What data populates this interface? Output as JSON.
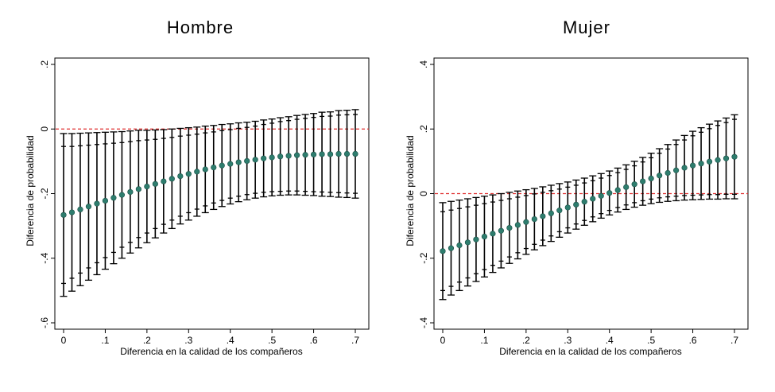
{
  "chart_data": [
    {
      "type": "scatter",
      "title": "Hombre",
      "xlabel": "Diferencia en la calidad de los compañeros",
      "ylabel": "Diferencia de probabilidad",
      "xlim": [
        0,
        0.7
      ],
      "ylim": [
        -0.6,
        0.2
      ],
      "xticks": [
        0,
        0.1,
        0.2,
        0.3,
        0.4,
        0.5,
        0.6,
        0.7
      ],
      "xtick_labels": [
        "0",
        ".1",
        ".2",
        ".3",
        ".4",
        ".5",
        ".6",
        ".7"
      ],
      "yticks": [
        -0.6,
        -0.4,
        -0.2,
        0,
        0.2
      ],
      "ytick_labels": [
        "-.6",
        "-.4",
        "-.2",
        "0",
        ".2"
      ],
      "reference_line": {
        "y": 0,
        "color": "#e03030",
        "style": "dashed"
      },
      "marker_color": "#2e7d6e",
      "grid": false,
      "x": [
        0,
        0.02,
        0.04,
        0.06,
        0.08,
        0.1,
        0.12,
        0.14,
        0.16,
        0.18,
        0.2,
        0.22,
        0.24,
        0.26,
        0.28,
        0.3,
        0.32,
        0.34,
        0.36,
        0.38,
        0.4,
        0.42,
        0.44,
        0.46,
        0.48,
        0.5,
        0.52,
        0.54,
        0.56,
        0.58,
        0.6,
        0.62,
        0.64,
        0.66,
        0.68,
        0.7
      ],
      "y": [
        -0.266,
        -0.258,
        -0.249,
        -0.24,
        -0.231,
        -0.222,
        -0.213,
        -0.204,
        -0.195,
        -0.186,
        -0.178,
        -0.17,
        -0.162,
        -0.154,
        -0.146,
        -0.139,
        -0.132,
        -0.125,
        -0.119,
        -0.113,
        -0.108,
        -0.103,
        -0.099,
        -0.095,
        -0.091,
        -0.088,
        -0.085,
        -0.083,
        -0.081,
        -0.08,
        -0.079,
        -0.078,
        -0.078,
        -0.077,
        -0.077,
        -0.077
      ],
      "ci90_low": [
        -0.478,
        -0.462,
        -0.446,
        -0.43,
        -0.414,
        -0.398,
        -0.382,
        -0.366,
        -0.351,
        -0.336,
        -0.322,
        -0.308,
        -0.295,
        -0.282,
        -0.27,
        -0.259,
        -0.248,
        -0.238,
        -0.229,
        -0.221,
        -0.214,
        -0.208,
        -0.203,
        -0.199,
        -0.196,
        -0.194,
        -0.193,
        -0.192,
        -0.192,
        -0.193,
        -0.194,
        -0.195,
        -0.196,
        -0.197,
        -0.198,
        -0.199
      ],
      "ci90_high": [
        -0.054,
        -0.054,
        -0.052,
        -0.05,
        -0.048,
        -0.046,
        -0.044,
        -0.042,
        -0.039,
        -0.036,
        -0.034,
        -0.032,
        -0.029,
        -0.026,
        -0.022,
        -0.019,
        -0.016,
        -0.012,
        -0.009,
        -0.005,
        -0.002,
        0.002,
        0.005,
        0.009,
        0.014,
        0.018,
        0.023,
        0.026,
        0.03,
        0.033,
        0.036,
        0.039,
        0.04,
        0.043,
        0.044,
        0.045
      ],
      "ci95_low": [
        -0.518,
        -0.502,
        -0.485,
        -0.468,
        -0.451,
        -0.434,
        -0.417,
        -0.4,
        -0.384,
        -0.368,
        -0.352,
        -0.337,
        -0.322,
        -0.308,
        -0.294,
        -0.282,
        -0.27,
        -0.259,
        -0.249,
        -0.24,
        -0.232,
        -0.225,
        -0.219,
        -0.214,
        -0.21,
        -0.207,
        -0.205,
        -0.204,
        -0.204,
        -0.205,
        -0.206,
        -0.208,
        -0.209,
        -0.211,
        -0.212,
        -0.214
      ],
      "ci95_high": [
        -0.014,
        -0.014,
        -0.013,
        -0.012,
        -0.011,
        -0.01,
        -0.009,
        -0.008,
        -0.006,
        -0.004,
        -0.004,
        -0.003,
        -0.002,
        0.0,
        0.002,
        0.004,
        0.006,
        0.009,
        0.011,
        0.014,
        0.016,
        0.019,
        0.021,
        0.024,
        0.028,
        0.031,
        0.035,
        0.038,
        0.042,
        0.045,
        0.048,
        0.052,
        0.053,
        0.057,
        0.058,
        0.06
      ]
    },
    {
      "type": "scatter",
      "title": "Mujer",
      "xlabel": "Diferencia en la calidad de los compañeros",
      "ylabel": "Diferencia de probabilidad",
      "xlim": [
        0,
        0.7
      ],
      "ylim": [
        -0.4,
        0.4
      ],
      "xticks": [
        0,
        0.1,
        0.2,
        0.3,
        0.4,
        0.5,
        0.6,
        0.7
      ],
      "xtick_labels": [
        "0",
        ".1",
        ".2",
        ".3",
        ".4",
        ".5",
        ".6",
        ".7"
      ],
      "yticks": [
        -0.4,
        -0.2,
        0,
        0.2,
        0.4
      ],
      "ytick_labels": [
        "-.4",
        "-.2",
        "0",
        ".2",
        ".4"
      ],
      "reference_line": {
        "y": 0,
        "color": "#e03030",
        "style": "dashed"
      },
      "marker_color": "#2e7d6e",
      "grid": false,
      "x": [
        0,
        0.02,
        0.04,
        0.06,
        0.08,
        0.1,
        0.12,
        0.14,
        0.16,
        0.18,
        0.2,
        0.22,
        0.24,
        0.26,
        0.28,
        0.3,
        0.32,
        0.34,
        0.36,
        0.38,
        0.4,
        0.42,
        0.44,
        0.46,
        0.48,
        0.5,
        0.52,
        0.54,
        0.56,
        0.58,
        0.6,
        0.62,
        0.64,
        0.66,
        0.68,
        0.7
      ],
      "y": [
        -0.178,
        -0.169,
        -0.16,
        -0.151,
        -0.142,
        -0.133,
        -0.124,
        -0.115,
        -0.106,
        -0.097,
        -0.088,
        -0.079,
        -0.07,
        -0.061,
        -0.052,
        -0.043,
        -0.034,
        -0.025,
        -0.016,
        -0.007,
        0.002,
        0.011,
        0.02,
        0.029,
        0.038,
        0.047,
        0.056,
        0.064,
        0.072,
        0.08,
        0.087,
        0.093,
        0.099,
        0.104,
        0.109,
        0.114
      ],
      "ci90_low": [
        -0.3,
        -0.287,
        -0.274,
        -0.261,
        -0.248,
        -0.235,
        -0.222,
        -0.209,
        -0.196,
        -0.183,
        -0.17,
        -0.157,
        -0.144,
        -0.131,
        -0.118,
        -0.106,
        -0.094,
        -0.083,
        -0.072,
        -0.062,
        -0.052,
        -0.043,
        -0.035,
        -0.028,
        -0.022,
        -0.017,
        -0.013,
        -0.01,
        -0.008,
        -0.006,
        -0.005,
        -0.004,
        -0.003,
        -0.003,
        -0.002,
        -0.002
      ],
      "ci90_high": [
        -0.056,
        -0.051,
        -0.046,
        -0.041,
        -0.036,
        -0.031,
        -0.026,
        -0.021,
        -0.016,
        -0.011,
        -0.006,
        -0.001,
        0.004,
        0.009,
        0.014,
        0.02,
        0.026,
        0.033,
        0.04,
        0.048,
        0.056,
        0.065,
        0.075,
        0.086,
        0.098,
        0.111,
        0.125,
        0.138,
        0.152,
        0.166,
        0.179,
        0.19,
        0.201,
        0.211,
        0.22,
        0.23
      ],
      "ci95_low": [
        -0.328,
        -0.314,
        -0.3,
        -0.286,
        -0.272,
        -0.258,
        -0.244,
        -0.23,
        -0.216,
        -0.202,
        -0.188,
        -0.174,
        -0.161,
        -0.148,
        -0.135,
        -0.122,
        -0.11,
        -0.098,
        -0.087,
        -0.076,
        -0.066,
        -0.057,
        -0.049,
        -0.042,
        -0.036,
        -0.031,
        -0.027,
        -0.024,
        -0.022,
        -0.02,
        -0.019,
        -0.018,
        -0.017,
        -0.017,
        -0.016,
        -0.016
      ],
      "ci95_high": [
        -0.028,
        -0.024,
        -0.02,
        -0.016,
        -0.012,
        -0.008,
        -0.004,
        0.0,
        0.004,
        0.008,
        0.012,
        0.016,
        0.021,
        0.026,
        0.031,
        0.036,
        0.042,
        0.048,
        0.055,
        0.062,
        0.07,
        0.079,
        0.089,
        0.1,
        0.112,
        0.125,
        0.139,
        0.152,
        0.166,
        0.18,
        0.193,
        0.204,
        0.215,
        0.225,
        0.234,
        0.244
      ]
    }
  ]
}
